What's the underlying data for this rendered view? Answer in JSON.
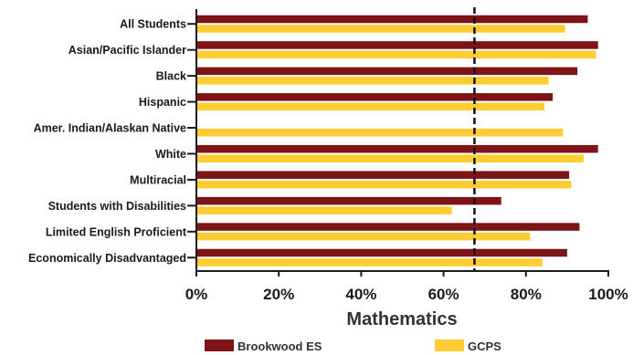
{
  "chart_data": {
    "type": "bar",
    "orientation": "horizontal",
    "categories": [
      "All Students",
      "Asian/Pacific Islander",
      "Black",
      "Hispanic",
      "Amer. Indian/Alaskan Native",
      "White",
      "Multiracial",
      "Students with Disabilities",
      "Limited English Proficient",
      "Economically Disadvantaged"
    ],
    "series": [
      {
        "name": "Brookwood ES",
        "color": "#7f1416",
        "values": [
          95,
          97.5,
          92.5,
          86.5,
          null,
          97.5,
          90.5,
          74,
          93,
          90
        ]
      },
      {
        "name": "GCPS",
        "color": "#ffcc33",
        "values": [
          89.5,
          97,
          85.5,
          84.5,
          89,
          94,
          91,
          62,
          81,
          84
        ]
      }
    ],
    "xlabel": "Mathematics",
    "xlim": [
      0,
      100
    ],
    "xticks": [
      "0%",
      "20%",
      "40%",
      "60%",
      "80%",
      "100%"
    ],
    "xtick_values": [
      0,
      20,
      40,
      60,
      80,
      100
    ],
    "reference_line": {
      "value": 67.5,
      "style": "dashed",
      "color": "#111111"
    },
    "grid": false,
    "legend_position": "bottom"
  }
}
